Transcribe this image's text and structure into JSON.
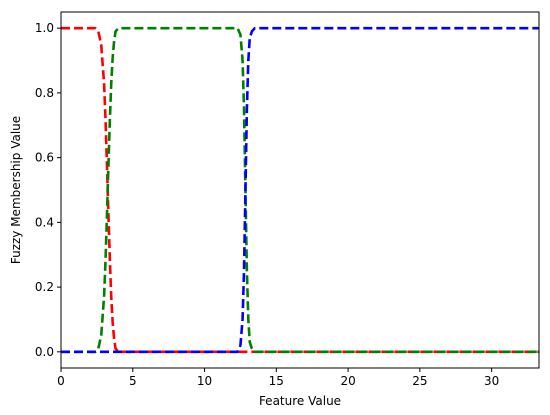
{
  "chart_data": {
    "type": "line",
    "title": "",
    "xlabel": "Feature Value",
    "ylabel": "Fuzzy Membership Value",
    "xlim": [
      0,
      33.3
    ],
    "ylim": [
      -0.05,
      1.05
    ],
    "xticks": [
      0,
      5,
      10,
      15,
      20,
      25,
      30
    ],
    "yticks": [
      0.0,
      0.2,
      0.4,
      0.6,
      0.8,
      1.0
    ],
    "xtick_labels": [
      "0",
      "5",
      "10",
      "15",
      "20",
      "25",
      "30"
    ],
    "ytick_labels": [
      "0.0",
      "0.2",
      "0.4",
      "0.6",
      "0.8",
      "1.0"
    ],
    "grid": false,
    "legend": "none",
    "series": [
      {
        "color": "#ff0000",
        "style": "dashed",
        "x": [
          0,
          2.4,
          2.6,
          2.8,
          3.0,
          3.1,
          3.2,
          3.3,
          3.4,
          3.5,
          3.6,
          3.7,
          3.8,
          4.0,
          4.2,
          33.3
        ],
        "y": [
          1.0,
          1.0,
          0.99,
          0.95,
          0.83,
          0.72,
          0.58,
          0.43,
          0.29,
          0.17,
          0.09,
          0.04,
          0.01,
          0.0,
          0.0,
          0.0
        ]
      },
      {
        "color": "#008000",
        "style": "dashed",
        "x": [
          0,
          2.4,
          2.6,
          2.8,
          3.0,
          3.1,
          3.2,
          3.3,
          3.4,
          3.5,
          3.6,
          3.7,
          3.8,
          4.0,
          4.2,
          12.3,
          12.5,
          12.65,
          12.75,
          12.85,
          12.95,
          13.05,
          13.15,
          13.3,
          13.5,
          33.3
        ],
        "y": [
          0.0,
          0.0,
          0.01,
          0.05,
          0.17,
          0.28,
          0.42,
          0.57,
          0.71,
          0.83,
          0.91,
          0.96,
          0.99,
          1.0,
          1.0,
          1.0,
          0.98,
          0.9,
          0.75,
          0.5,
          0.25,
          0.1,
          0.03,
          0.01,
          0.0,
          0.0
        ]
      },
      {
        "color": "#0000ff",
        "style": "dashed",
        "x": [
          0,
          12.3,
          12.5,
          12.65,
          12.75,
          12.85,
          12.95,
          13.05,
          13.15,
          13.3,
          13.5,
          33.3
        ],
        "y": [
          0.0,
          0.0,
          0.02,
          0.1,
          0.25,
          0.5,
          0.75,
          0.9,
          0.97,
          0.99,
          1.0,
          1.0
        ]
      }
    ]
  }
}
